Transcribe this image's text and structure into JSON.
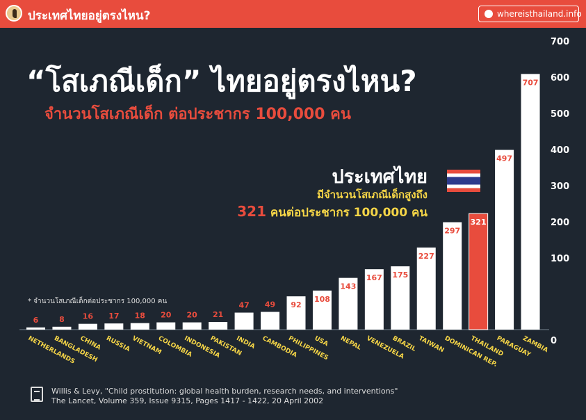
{
  "header": {
    "title": "ประเทศไทยอยู่ตรงไหน?",
    "site": "whereisthailand.info"
  },
  "main_title": "“โสเภณีเด็ก” ไทยอยู่ตรงไหน?",
  "subtitle": "จำนวนโสเภณีเด็ก ต่อประชากร 100,000 คน",
  "callout": {
    "title": "ประเทศไทย",
    "line1": "มีจำนวนโสเภณีเด็กสูงถึง",
    "value": "321",
    "line2": " คนต่อประชากร 100,000 คน"
  },
  "footnote": "* จำนวนโสเภณีเด็กต่อประชากร 100,000 คน",
  "citation": {
    "line1": "Willis & Levy, \"Child prostitution: global health burden, research needs, and interventions\"",
    "line2": "The Lancet, Volume 359, Issue 9315, Pages 1417 - 1422, 20 April 2002"
  },
  "colors": {
    "background": "#1e2630",
    "accent": "#e84c3d",
    "bar": "#ffffff",
    "highlight_bar": "#e84c3d",
    "label": "#f5d547"
  },
  "chart_data": {
    "type": "bar",
    "categories": [
      "NETHERLANDS",
      "BANGLADESH",
      "CHINA",
      "RUSSIA",
      "VIETNAM",
      "COLOMBIA",
      "INDONESIA",
      "PAKISTAN",
      "INDIA",
      "CAMBODIA",
      "PHILIPPINES",
      "USA",
      "NEPAL",
      "VENEZUELA",
      "BRAZIL",
      "TAIWAN",
      "DOMINICAN REP.",
      "THAILAND",
      "PARAGUAY",
      "ZAMBIA"
    ],
    "values": [
      6,
      8,
      16,
      17,
      18,
      20,
      20,
      21,
      47,
      49,
      92,
      108,
      143,
      167,
      175,
      227,
      297,
      321,
      497,
      707
    ],
    "highlight": "THAILAND",
    "yticks": [
      0,
      100,
      200,
      300,
      400,
      500,
      600,
      700
    ],
    "ylim": [
      0,
      707
    ],
    "yaxis": "right",
    "grid": false
  }
}
